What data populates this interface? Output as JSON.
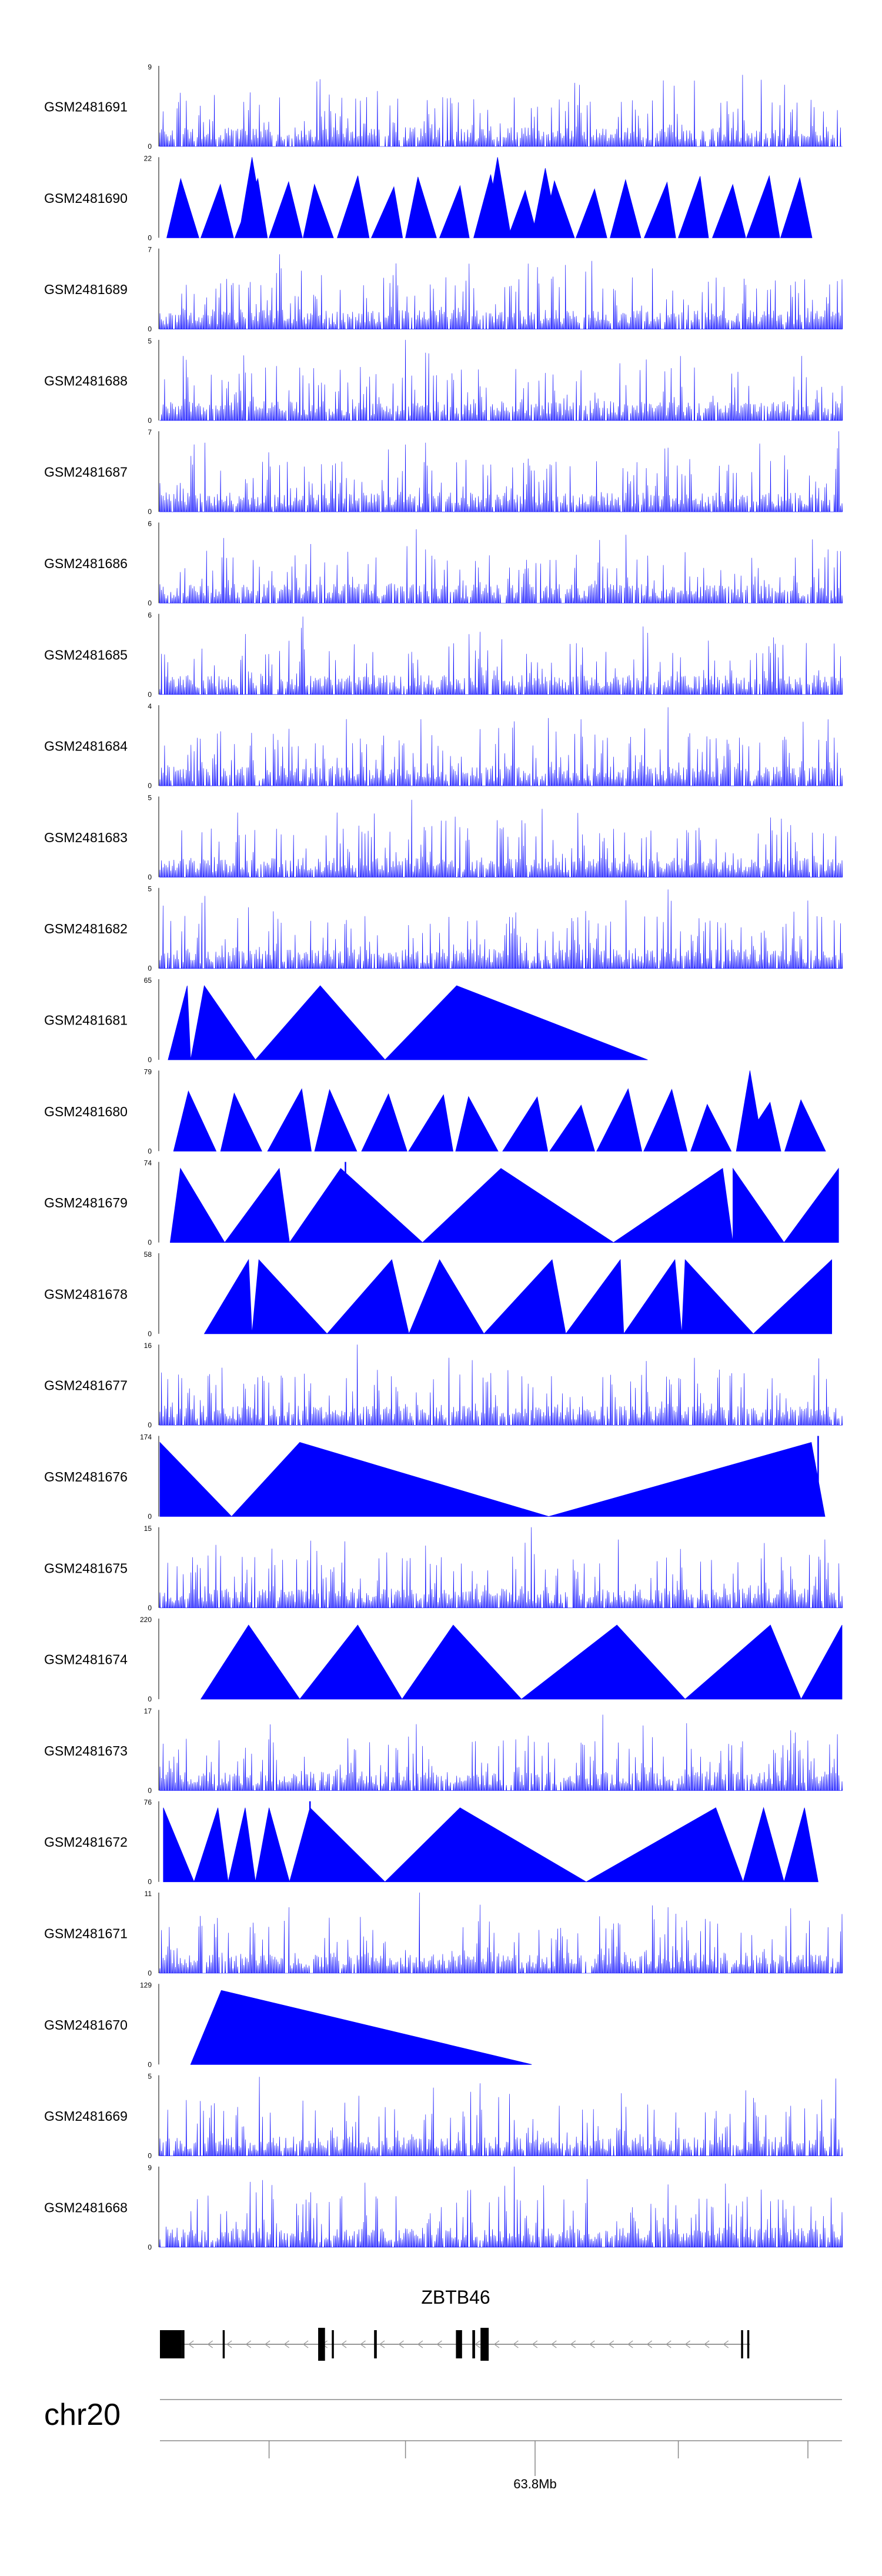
{
  "chart_data": {
    "type": "area",
    "title": "",
    "xlabel": "",
    "ylabel": "",
    "track_color": "#0000ff",
    "axis_color": "#000000",
    "tracks": [
      {
        "label": "GSM2481691",
        "ymax": 9,
        "ymin": 0,
        "style": "dense",
        "peaks": [
          [
            0.235,
            7.5
          ],
          [
            0.415,
            5.5
          ],
          [
            0.855,
            8.0
          ],
          [
            0.03,
            6.0
          ],
          [
            0.63,
            5.0
          ]
        ]
      },
      {
        "label": "GSM2481690",
        "ymax": 22,
        "ymin": 0,
        "style": "sparse",
        "xmin": 0.01,
        "xmax": 0.96,
        "n": 19,
        "peaks": [
          [
            0.135,
            22
          ],
          [
            0.495,
            22
          ],
          [
            0.565,
            19
          ]
        ]
      },
      {
        "label": "GSM2481689",
        "ymax": 7,
        "ymin": 0,
        "style": "dense",
        "peaks": [
          [
            0.175,
            6.5
          ],
          [
            0.625,
            5.0
          ],
          [
            0.42,
            4.5
          ]
        ]
      },
      {
        "label": "GSM2481688",
        "ymax": 5,
        "ymin": 0,
        "style": "dense",
        "peaks": [
          [
            0.36,
            5.0
          ],
          [
            0.39,
            4.2
          ],
          [
            0.94,
            4.0
          ],
          [
            0.035,
            4.0
          ]
        ]
      },
      {
        "label": "GSM2481687",
        "ymax": 7,
        "ymin": 0,
        "style": "dense",
        "peaks": [
          [
            0.065,
            6.0
          ],
          [
            0.39,
            6.0
          ],
          [
            0.995,
            7.0
          ],
          [
            0.74,
            5.5
          ]
        ]
      },
      {
        "label": "GSM2481686",
        "ymax": 6,
        "ymin": 0,
        "style": "dense",
        "peaks": [
          [
            0.375,
            5.5
          ],
          [
            0.39,
            4.0
          ],
          [
            0.98,
            4.0
          ]
        ]
      },
      {
        "label": "GSM2481685",
        "ymax": 6,
        "ymin": 0,
        "style": "dense",
        "peaks": [
          [
            0.21,
            5.8
          ],
          [
            0.19,
            4.0
          ],
          [
            0.62,
            3.5
          ]
        ]
      },
      {
        "label": "GSM2481684",
        "ymax": 4,
        "ymin": 0,
        "style": "dense",
        "peaks": [
          [
            0.745,
            3.9
          ],
          [
            0.52,
            3.2
          ],
          [
            0.98,
            3.3
          ]
        ]
      },
      {
        "label": "GSM2481683",
        "ymax": 5,
        "ymin": 0,
        "style": "dense",
        "peaks": [
          [
            0.37,
            4.8
          ],
          [
            0.895,
            3.7
          ],
          [
            0.42,
            3.5
          ]
        ]
      },
      {
        "label": "GSM2481682",
        "ymax": 5,
        "ymin": 0,
        "style": "dense",
        "peaks": [
          [
            0.745,
            4.9
          ],
          [
            0.75,
            4.2
          ],
          [
            0.065,
            4.5
          ],
          [
            0.13,
            3.8
          ]
        ]
      },
      {
        "label": "GSM2481681",
        "ymax": 65,
        "ymin": 0,
        "style": "tri",
        "triangles": [
          [
            0.012,
            0.045,
            0.04
          ],
          [
            0.045,
            0.14,
            0.065
          ],
          [
            0.14,
            0.33,
            0.235
          ],
          [
            0.33,
            0.715,
            0.435
          ]
        ],
        "spike": null
      },
      {
        "label": "GSM2481680",
        "ymax": 79,
        "ymin": 0,
        "style": "sparse",
        "xmin": 0.02,
        "xmax": 0.985,
        "n": 14,
        "peaks": [
          [
            0.865,
            79
          ]
        ]
      },
      {
        "label": "GSM2481679",
        "ymax": 74,
        "ymin": 0,
        "style": "tri",
        "triangles": [
          [
            0.015,
            0.095,
            0.03
          ],
          [
            0.095,
            0.19,
            0.175
          ],
          [
            0.19,
            0.385,
            0.265
          ],
          [
            0.385,
            0.665,
            0.5
          ],
          [
            0.665,
            0.84,
            0.825
          ],
          [
            0.84,
            0.915,
            0.84
          ],
          [
            0.915,
            0.995,
            0.995
          ]
        ],
        "spike": [
          0.272,
          74
        ]
      },
      {
        "label": "GSM2481678",
        "ymax": 58,
        "ymin": 0,
        "style": "tri",
        "triangles": [
          [
            0.065,
            0.135,
            0.13
          ],
          [
            0.135,
            0.245,
            0.145
          ],
          [
            0.245,
            0.365,
            0.34
          ],
          [
            0.365,
            0.475,
            0.41
          ],
          [
            0.475,
            0.595,
            0.575
          ],
          [
            0.595,
            0.68,
            0.675
          ],
          [
            0.68,
            0.765,
            0.755
          ],
          [
            0.765,
            0.87,
            0.77
          ],
          [
            0.87,
            0.985,
            0.985
          ]
        ],
        "spike": [
          0.34,
          34
        ]
      },
      {
        "label": "GSM2481677",
        "ymax": 16,
        "ymin": 0,
        "style": "dense",
        "peaks": [
          [
            0.29,
            16
          ],
          [
            0.19,
            4.5
          ],
          [
            0.12,
            3.5
          ]
        ]
      },
      {
        "label": "GSM2481676",
        "ymax": 174,
        "ymin": 0,
        "style": "tri",
        "triangles": [
          [
            0.0,
            0.105,
            0.0
          ],
          [
            0.105,
            0.57,
            0.205
          ],
          [
            0.57,
            0.975,
            0.955
          ]
        ],
        "spike": [
          0.965,
          174
        ]
      },
      {
        "label": "GSM2481675",
        "ymax": 15,
        "ymin": 0,
        "style": "dense",
        "peaks": [
          [
            0.545,
            15
          ],
          [
            0.165,
            11
          ],
          [
            0.605,
            9
          ],
          [
            0.55,
            10
          ]
        ]
      },
      {
        "label": "GSM2481674",
        "ymax": 220,
        "ymin": 0,
        "style": "tri",
        "triangles": [
          [
            0.06,
            0.205,
            0.13
          ],
          [
            0.205,
            0.355,
            0.29
          ],
          [
            0.355,
            0.53,
            0.43
          ],
          [
            0.53,
            0.77,
            0.67
          ],
          [
            0.77,
            0.94,
            0.895
          ],
          [
            0.94,
            1.0,
            1.0
          ]
        ],
        "spike": [
          0.29,
          150
        ]
      },
      {
        "label": "GSM2481673",
        "ymax": 17,
        "ymin": 0,
        "style": "dense",
        "peaks": [
          [
            0.65,
            16
          ],
          [
            0.375,
            14
          ],
          [
            0.275,
            11
          ]
        ]
      },
      {
        "label": "GSM2481672",
        "ymax": 76,
        "ymin": 0,
        "style": "tri",
        "triangles": [
          [
            0.005,
            0.05,
            0.005
          ],
          [
            0.05,
            0.1,
            0.085
          ],
          [
            0.1,
            0.14,
            0.125
          ],
          [
            0.14,
            0.19,
            0.16
          ],
          [
            0.19,
            0.33,
            0.22
          ],
          [
            0.33,
            0.625,
            0.44
          ],
          [
            0.625,
            0.855,
            0.815
          ],
          [
            0.855,
            0.915,
            0.885
          ],
          [
            0.915,
            0.965,
            0.945
          ]
        ],
        "spike": [
          0.22,
          76
        ]
      },
      {
        "label": "GSM2481671",
        "ymax": 11,
        "ymin": 0,
        "style": "dense",
        "peaks": [
          [
            0.38,
            11
          ],
          [
            0.19,
            9
          ],
          [
            0.745,
            9
          ]
        ]
      },
      {
        "label": "GSM2481670",
        "ymax": 129,
        "ymin": 0,
        "style": "tri",
        "triangles": [
          [
            0.045,
            0.545,
            0.09
          ]
        ],
        "spike": null
      },
      {
        "label": "GSM2481669",
        "ymax": 5,
        "ymin": 0,
        "style": "dense",
        "peaks": [
          [
            0.145,
            4.9
          ],
          [
            0.47,
            4.5
          ],
          [
            0.99,
            4.8
          ]
        ]
      },
      {
        "label": "GSM2481668",
        "ymax": 9,
        "ymin": 0,
        "style": "dense",
        "peaks": [
          [
            0.52,
            9
          ],
          [
            0.15,
            7.5
          ],
          [
            0.745,
            7.0
          ],
          [
            0.3,
            7.2
          ]
        ]
      }
    ],
    "gene": {
      "name": "ZBTB46",
      "strand": "-",
      "tx_start": 0.0,
      "tx_end": 0.865,
      "exons": [
        [
          0.0,
          0.032
        ],
        [
          0.032,
          0.036
        ],
        [
          0.092,
          0.095
        ],
        [
          0.232,
          0.242
        ],
        [
          0.252,
          0.255
        ],
        [
          0.314,
          0.318
        ],
        [
          0.434,
          0.443
        ],
        [
          0.458,
          0.462
        ],
        [
          0.47,
          0.482
        ],
        [
          0.852,
          0.855
        ],
        [
          0.861,
          0.864
        ]
      ],
      "thick_exons": [
        [
          0.0,
          0.036
        ],
        [
          0.232,
          0.242
        ],
        [
          0.47,
          0.482
        ]
      ]
    },
    "ideogram": {
      "chrom": "chr20"
    },
    "x_axis": {
      "tick_positions": [
        0.16,
        0.36,
        0.55,
        0.76,
        0.95
      ],
      "labeled_tick": {
        "pos": 0.55,
        "label": "63.8Mb"
      }
    }
  }
}
